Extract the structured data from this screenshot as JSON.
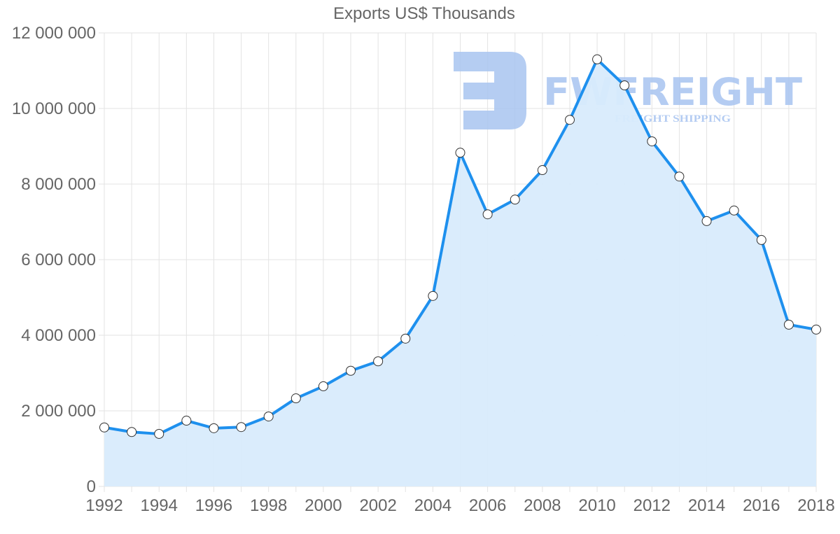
{
  "chart_data": {
    "type": "area",
    "title": "Exports US$ Thousands",
    "xlabel": "",
    "ylabel": "",
    "x": [
      1992,
      1993,
      1994,
      1995,
      1996,
      1997,
      1998,
      1999,
      2000,
      2001,
      2002,
      2003,
      2004,
      2005,
      2006,
      2007,
      2008,
      2009,
      2010,
      2011,
      2012,
      2013,
      2014,
      2015,
      2016,
      2017,
      2018
    ],
    "series": [
      {
        "name": "Exports US$ Thousands",
        "values": [
          1560000,
          1440000,
          1390000,
          1740000,
          1540000,
          1570000,
          1850000,
          2330000,
          2650000,
          3060000,
          3310000,
          3910000,
          5040000,
          8830000,
          7200000,
          7590000,
          8370000,
          9700000,
          11300000,
          10610000,
          9130000,
          8200000,
          7020000,
          7300000,
          6520000,
          4280000,
          4150000
        ]
      }
    ],
    "ylim": [
      0,
      12000000
    ],
    "xlim": [
      1992,
      2018
    ],
    "y_ticks": [
      "0",
      "2 000 000",
      "4 000 000",
      "6 000 000",
      "8 000 000",
      "10 000 000",
      "12 000 000"
    ],
    "x_ticks": [
      "1992",
      "1994",
      "1996",
      "1998",
      "2000",
      "2002",
      "2004",
      "2006",
      "2008",
      "2010",
      "2012",
      "2014",
      "2016",
      "2018"
    ],
    "grid": true,
    "legend": null,
    "colors": {
      "line": "#1e90ee",
      "fill": "#d8ebfc",
      "point_fill": "#ffffff",
      "point_stroke": "#333333",
      "grid": "#e3e3e3",
      "text": "#666666"
    }
  },
  "watermark": {
    "brand": "FWFREIGHT",
    "tagline": "FREIGHT SHIPPING",
    "color": "#a8c4f0"
  }
}
